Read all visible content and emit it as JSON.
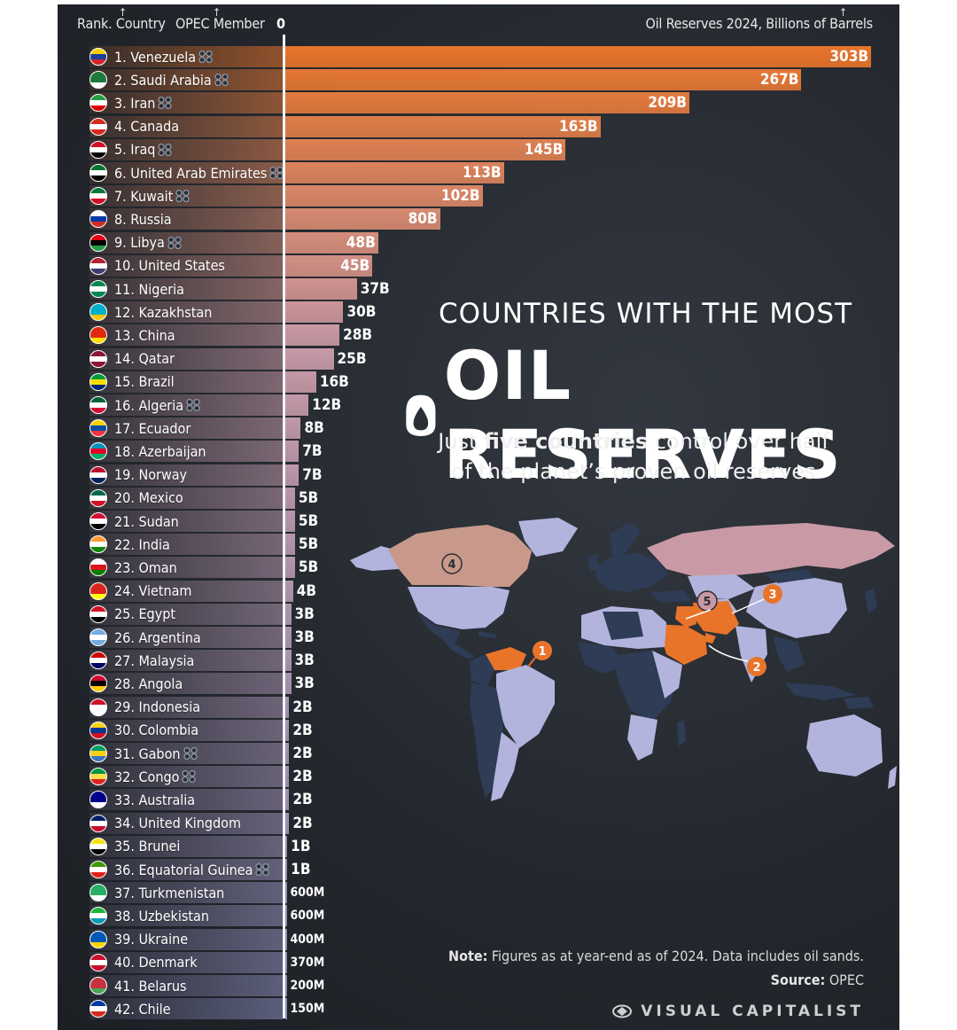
{
  "header": {
    "rank_country": "Rank. Country",
    "opec_member": "OPEC Member",
    "zero": "0",
    "reserves_label": "Oil Reserves 2024, Billions of Barrels"
  },
  "title": {
    "line1": "COUNTRIES WITH THE MOST",
    "line2": "OIL RESERVES",
    "subtitle_pre": "Just ",
    "subtitle_bold": "five countries",
    "subtitle_post": " control over half",
    "subtitle_line2": "of the planet’s proven oil reserves"
  },
  "map": {
    "markers": [
      "1",
      "2",
      "3",
      "4",
      "5"
    ],
    "highlight_color": "#e8742a",
    "default_country_color": "#b3b4de",
    "other_country_color": "#2e3c56"
  },
  "note": {
    "label": "Note:",
    "text": " Figures as at year-end as of 2024. Data includes oil sands.",
    "source_label": "Source:",
    "source_text": " OPEC"
  },
  "brand": "VISUAL CAPITALIST",
  "colors": {
    "top_orange": "#e8742a",
    "mid_pink": "#c99aa6",
    "bottom_lavender": "#8c8fbf"
  },
  "chart_data": {
    "type": "bar",
    "orientation": "horizontal",
    "title": "COUNTRIES WITH THE MOST OIL RESERVES",
    "xlabel": "Oil Reserves 2024, Billions of Barrels",
    "unit": "billion barrels",
    "rows": [
      {
        "label": "1. Venezuela",
        "value": 303,
        "text": "303B",
        "opec": true
      },
      {
        "label": "2. Saudi Arabia",
        "value": 267,
        "text": "267B",
        "opec": true
      },
      {
        "label": "3. Iran",
        "value": 209,
        "text": "209B",
        "opec": true
      },
      {
        "label": "4. Canada",
        "value": 163,
        "text": "163B",
        "opec": false
      },
      {
        "label": "5. Iraq",
        "value": 145,
        "text": "145B",
        "opec": true
      },
      {
        "label": "6. United Arab Emirates",
        "value": 113,
        "text": "113B",
        "opec": true
      },
      {
        "label": "7. Kuwait",
        "value": 102,
        "text": "102B",
        "opec": true
      },
      {
        "label": "8. Russia",
        "value": 80,
        "text": "80B",
        "opec": false
      },
      {
        "label": "9. Libya",
        "value": 48,
        "text": "48B",
        "opec": true
      },
      {
        "label": "10. United States",
        "value": 45,
        "text": "45B",
        "opec": false
      },
      {
        "label": "11. Nigeria",
        "value": 37,
        "text": "37B",
        "opec": false
      },
      {
        "label": "12. Kazakhstan",
        "value": 30,
        "text": "30B",
        "opec": false
      },
      {
        "label": "13. China",
        "value": 28,
        "text": "28B",
        "opec": false
      },
      {
        "label": "14. Qatar",
        "value": 25,
        "text": "25B",
        "opec": false
      },
      {
        "label": "15. Brazil",
        "value": 16,
        "text": "16B",
        "opec": false
      },
      {
        "label": "16. Algeria",
        "value": 12,
        "text": "12B",
        "opec": true
      },
      {
        "label": "17. Ecuador",
        "value": 8,
        "text": "8B",
        "opec": false
      },
      {
        "label": "18. Azerbaijan",
        "value": 7,
        "text": "7B",
        "opec": false
      },
      {
        "label": "19. Norway",
        "value": 7,
        "text": "7B",
        "opec": false
      },
      {
        "label": "20. Mexico",
        "value": 5,
        "text": "5B",
        "opec": false
      },
      {
        "label": "21. Sudan",
        "value": 5,
        "text": "5B",
        "opec": false
      },
      {
        "label": "22. India",
        "value": 5,
        "text": "5B",
        "opec": false
      },
      {
        "label": "23. Oman",
        "value": 5,
        "text": "5B",
        "opec": false
      },
      {
        "label": "24. Vietnam",
        "value": 4,
        "text": "4B",
        "opec": false
      },
      {
        "label": "25. Egypt",
        "value": 3,
        "text": "3B",
        "opec": false
      },
      {
        "label": "26. Argentina",
        "value": 3,
        "text": "3B",
        "opec": false
      },
      {
        "label": "27. Malaysia",
        "value": 3,
        "text": "3B",
        "opec": false
      },
      {
        "label": "28. Angola",
        "value": 3,
        "text": "3B",
        "opec": false
      },
      {
        "label": "29. Indonesia",
        "value": 2,
        "text": "2B",
        "opec": false
      },
      {
        "label": "30. Colombia",
        "value": 2,
        "text": "2B",
        "opec": false
      },
      {
        "label": "31. Gabon",
        "value": 2,
        "text": "2B",
        "opec": true
      },
      {
        "label": "32. Congo",
        "value": 2,
        "text": "2B",
        "opec": true
      },
      {
        "label": "33. Australia",
        "value": 2,
        "text": "2B",
        "opec": false
      },
      {
        "label": "34. United Kingdom",
        "value": 2,
        "text": "2B",
        "opec": false
      },
      {
        "label": "35. Brunei",
        "value": 1,
        "text": "1B",
        "opec": false
      },
      {
        "label": "36. Equatorial Guinea",
        "value": 1,
        "text": "1B",
        "opec": true
      },
      {
        "label": "37. Turkmenistan",
        "value": 0.6,
        "text": "600M",
        "opec": false
      },
      {
        "label": "38. Uzbekistan",
        "value": 0.6,
        "text": "600M",
        "opec": false
      },
      {
        "label": "39. Ukraine",
        "value": 0.4,
        "text": "400M",
        "opec": false
      },
      {
        "label": "40. Denmark",
        "value": 0.37,
        "text": "370M",
        "opec": false
      },
      {
        "label": "41. Belarus",
        "value": 0.2,
        "text": "200M",
        "opec": false
      },
      {
        "label": "42. Chile",
        "value": 0.15,
        "text": "150M",
        "opec": false
      }
    ],
    "xlim": [
      0,
      303
    ],
    "grid": false,
    "legend": "none"
  },
  "flags": [
    [
      "#f4d000",
      "#1a3fa0",
      "#d0262c"
    ],
    [
      "#1e7a3c",
      "#1e7a3c",
      "#ffffff"
    ],
    [
      "#239f40",
      "#ffffff",
      "#da0000"
    ],
    [
      "#d52b1e",
      "#ffffff",
      "#d52b1e"
    ],
    [
      "#ce1126",
      "#ffffff",
      "#000000"
    ],
    [
      "#00732f",
      "#ffffff",
      "#000000"
    ],
    [
      "#007a3d",
      "#ffffff",
      "#ce1126"
    ],
    [
      "#ffffff",
      "#0039a6",
      "#d52b1e"
    ],
    [
      "#e70013",
      "#000000",
      "#239e46"
    ],
    [
      "#b22234",
      "#ffffff",
      "#3c3b6e"
    ],
    [
      "#008751",
      "#ffffff",
      "#008751"
    ],
    [
      "#00afca",
      "#00afca",
      "#fec50c"
    ],
    [
      "#de2910",
      "#de2910",
      "#ffde00"
    ],
    [
      "#8a1538",
      "#ffffff",
      "#8a1538"
    ],
    [
      "#009c3b",
      "#ffdf00",
      "#002776"
    ],
    [
      "#006233",
      "#ffffff",
      "#d21034"
    ],
    [
      "#ffd100",
      "#034ea2",
      "#ef3340"
    ],
    [
      "#0092bc",
      "#e4002b",
      "#00af66"
    ],
    [
      "#ba0c2f",
      "#ffffff",
      "#00205b"
    ],
    [
      "#006847",
      "#ffffff",
      "#ce1126"
    ],
    [
      "#d21034",
      "#ffffff",
      "#000000"
    ],
    [
      "#ff9933",
      "#ffffff",
      "#138808"
    ],
    [
      "#ffffff",
      "#db161b",
      "#008000"
    ],
    [
      "#da251d",
      "#da251d",
      "#ffff00"
    ],
    [
      "#ce1126",
      "#ffffff",
      "#000000"
    ],
    [
      "#74acdf",
      "#ffffff",
      "#74acdf"
    ],
    [
      "#cc0001",
      "#ffffff",
      "#010066"
    ],
    [
      "#cc092f",
      "#000000",
      "#ffcb00"
    ],
    [
      "#ce1126",
      "#ffffff",
      "#ffffff"
    ],
    [
      "#fcd116",
      "#003893",
      "#ce1126"
    ],
    [
      "#009e60",
      "#fcd116",
      "#3a75c4"
    ],
    [
      "#009543",
      "#fbde4a",
      "#dc241f"
    ],
    [
      "#00008b",
      "#00008b",
      "#ffffff"
    ],
    [
      "#012169",
      "#ffffff",
      "#c8102e"
    ],
    [
      "#f7e017",
      "#ffffff",
      "#000000"
    ],
    [
      "#3e9a00",
      "#ffffff",
      "#e32118"
    ],
    [
      "#28ae66",
      "#28ae66",
      "#ffffff"
    ],
    [
      "#1eb53a",
      "#ffffff",
      "#0099b5"
    ],
    [
      "#0057b7",
      "#0057b7",
      "#ffd700"
    ],
    [
      "#c8102e",
      "#ffffff",
      "#c8102e"
    ],
    [
      "#c8313e",
      "#c8313e",
      "#4aa657"
    ],
    [
      "#0039a6",
      "#ffffff",
      "#d52b1e"
    ]
  ]
}
